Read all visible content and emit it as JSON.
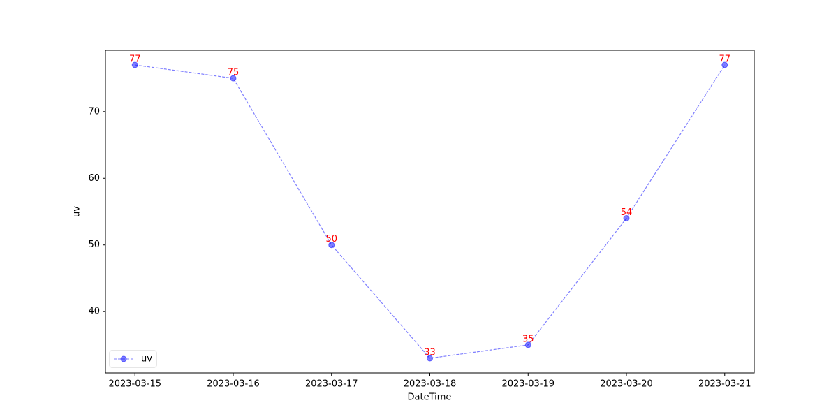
{
  "chart_data": {
    "type": "line",
    "xlabel": "DateTime",
    "ylabel": "uv",
    "categories": [
      "2023-03-15",
      "2023-03-16",
      "2023-03-17",
      "2023-03-18",
      "2023-03-19",
      "2023-03-20",
      "2023-03-21"
    ],
    "series": [
      {
        "name": "uv",
        "color": "#0000ff",
        "values": [
          77,
          75,
          50,
          33,
          35,
          54,
          77
        ]
      }
    ],
    "label_color": "#ff0000",
    "ylim": [
      30.8,
      79.2
    ],
    "yticks": [
      40,
      50,
      60,
      70
    ],
    "grid": false,
    "legend": "lower left"
  }
}
